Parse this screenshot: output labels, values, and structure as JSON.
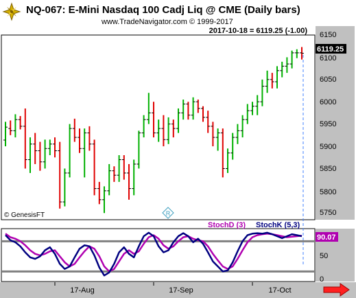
{
  "chart_data": {
    "type": "candlestick",
    "title": "NQ-067:  E-Mini Nasdaq 100 Cadj Liq @ CME  (Daily bars)",
    "subtitle": "www.TradeNavigator.com © 1999-2017",
    "last_bar_text": "2017-10-18 = 6119.25 (-1.00)",
    "last_price_label": "6119.25",
    "copyright": "© GenesisFT",
    "price_axis": {
      "ylim": [
        5745,
        6160
      ],
      "ticks": [
        "5750",
        "5800",
        "5850",
        "5900",
        "5950",
        "6000",
        "6050",
        "6100",
        "6150"
      ]
    },
    "x_tick_labels": [
      "17-Aug",
      "17-Sep",
      "17-Oct"
    ],
    "x_tick_index": [
      10,
      30,
      50
    ],
    "colors": {
      "up": "#00b000",
      "down": "#e00000",
      "stochD": "#b000b0",
      "stochK": "#000080",
      "grid": "#808080",
      "axis_bg": "#c0c0c0"
    },
    "bars": [
      [
        5924,
        5965,
        5910,
        5953
      ],
      [
        5950,
        5968,
        5935,
        5945
      ],
      [
        5945,
        5982,
        5930,
        5970
      ],
      [
        5970,
        5978,
        5948,
        5955
      ],
      [
        5955,
        5995,
        5860,
        5880
      ],
      [
        5880,
        5930,
        5850,
        5915
      ],
      [
        5915,
        5940,
        5870,
        5900
      ],
      [
        5900,
        5920,
        5855,
        5875
      ],
      [
        5875,
        5925,
        5860,
        5905
      ],
      [
        5905,
        5925,
        5890,
        5915
      ],
      [
        5915,
        5930,
        5885,
        5900
      ],
      [
        5900,
        5920,
        5770,
        5785
      ],
      [
        5785,
        5860,
        5775,
        5850
      ],
      [
        5850,
        5960,
        5840,
        5950
      ],
      [
        5950,
        5972,
        5920,
        5930
      ],
      [
        5930,
        5950,
        5895,
        5905
      ],
      [
        5905,
        5950,
        5840,
        5940
      ],
      [
        5940,
        5955,
        5900,
        5915
      ],
      [
        5915,
        5925,
        5800,
        5815
      ],
      [
        5815,
        5830,
        5780,
        5790
      ],
      [
        5790,
        5820,
        5760,
        5810
      ],
      [
        5810,
        5870,
        5800,
        5855
      ],
      [
        5855,
        5865,
        5830,
        5845
      ],
      [
        5845,
        5890,
        5830,
        5880
      ],
      [
        5880,
        5890,
        5835,
        5850
      ],
      [
        5850,
        5870,
        5790,
        5815
      ],
      [
        5815,
        5880,
        5800,
        5870
      ],
      [
        5870,
        5945,
        5860,
        5940
      ],
      [
        5940,
        5980,
        5930,
        5970
      ],
      [
        5970,
        6030,
        5960,
        5985
      ],
      [
        5985,
        6010,
        5930,
        5940
      ],
      [
        5940,
        5970,
        5920,
        5950
      ],
      [
        5950,
        5980,
        5910,
        5925
      ],
      [
        5925,
        5975,
        5915,
        5960
      ],
      [
        5960,
        5970,
        5930,
        5950
      ],
      [
        5950,
        5995,
        5940,
        5985
      ],
      [
        5985,
        6015,
        5970,
        6005
      ],
      [
        6005,
        6010,
        5970,
        5980
      ],
      [
        5980,
        6020,
        5970,
        6010
      ],
      [
        6010,
        6015,
        5985,
        5995
      ],
      [
        5995,
        6000,
        5965,
        5975
      ],
      [
        5975,
        5990,
        5940,
        5955
      ],
      [
        5955,
        5965,
        5910,
        5930
      ],
      [
        5930,
        5950,
        5900,
        5940
      ],
      [
        5940,
        5950,
        5840,
        5860
      ],
      [
        5860,
        5905,
        5850,
        5895
      ],
      [
        5895,
        5940,
        5880,
        5930
      ],
      [
        5930,
        5960,
        5915,
        5945
      ],
      [
        5945,
        5980,
        5930,
        5970
      ],
      [
        5970,
        6005,
        5960,
        5990
      ],
      [
        5990,
        6010,
        5980,
        6000
      ],
      [
        6000,
        6025,
        5980,
        6010
      ],
      [
        6010,
        6060,
        6000,
        6045
      ],
      [
        6045,
        6080,
        6030,
        6060
      ],
      [
        6060,
        6075,
        6040,
        6055
      ],
      [
        6055,
        6090,
        6040,
        6080
      ],
      [
        6080,
        6100,
        6065,
        6090
      ],
      [
        6090,
        6110,
        6075,
        6095
      ],
      [
        6095,
        6125,
        6085,
        6120
      ],
      [
        6120,
        6128,
        6108,
        6120
      ],
      [
        6120,
        6133,
        6105,
        6119
      ]
    ],
    "stochastic": {
      "ylim": [
        0,
        105
      ],
      "ticks": [
        "0",
        "50"
      ],
      "levels": [
        20,
        80
      ],
      "series": [
        {
          "name": "StochD (3)",
          "values": [
            95,
            88,
            85,
            80,
            72,
            62,
            55,
            52,
            55,
            60,
            62,
            50,
            38,
            30,
            35,
            48,
            60,
            70,
            65,
            50,
            30,
            20,
            25,
            40,
            55,
            62,
            55,
            60,
            75,
            88,
            92,
            85,
            72,
            65,
            70,
            80,
            88,
            90,
            85,
            82,
            80,
            70,
            55,
            42,
            30,
            25,
            30,
            45,
            62,
            78,
            88,
            92,
            94,
            95,
            94,
            92,
            90,
            88,
            89,
            90,
            91
          ]
        },
        {
          "name": "StochK (5,3)",
          "values": [
            92,
            82,
            78,
            70,
            58,
            48,
            45,
            50,
            62,
            68,
            55,
            35,
            25,
            30,
            48,
            65,
            72,
            70,
            52,
            28,
            12,
            18,
            35,
            58,
            68,
            55,
            48,
            70,
            90,
            97,
            90,
            70,
            58,
            62,
            78,
            90,
            96,
            90,
            78,
            85,
            75,
            58,
            40,
            30,
            20,
            22,
            38,
            60,
            80,
            92,
            95,
            96,
            95,
            97,
            94,
            90,
            86,
            90,
            94,
            92,
            90
          ]
        }
      ],
      "last_label": "90.07"
    }
  }
}
